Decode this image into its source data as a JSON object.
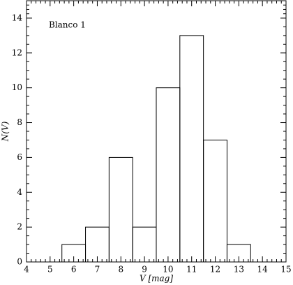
{
  "chart_data": {
    "type": "histogram",
    "annotation": "Blanco 1",
    "xlabel": "V [mag]",
    "ylabel": "N(V)",
    "bins": [
      5.5,
      6.5,
      7.5,
      8.5,
      9.5,
      10.5,
      11.5,
      12.5,
      13.5
    ],
    "values": [
      1,
      2,
      6,
      2,
      10,
      13,
      7,
      1
    ],
    "color": "#000000",
    "xlim": [
      4,
      15
    ],
    "xticks": [
      4,
      5,
      6,
      7,
      8,
      9,
      10,
      11,
      12,
      13,
      14,
      15
    ],
    "ylim": [
      0,
      15
    ],
    "yticks": [
      0,
      2,
      4,
      6,
      8,
      10,
      12,
      14
    ],
    "grid": false
  }
}
